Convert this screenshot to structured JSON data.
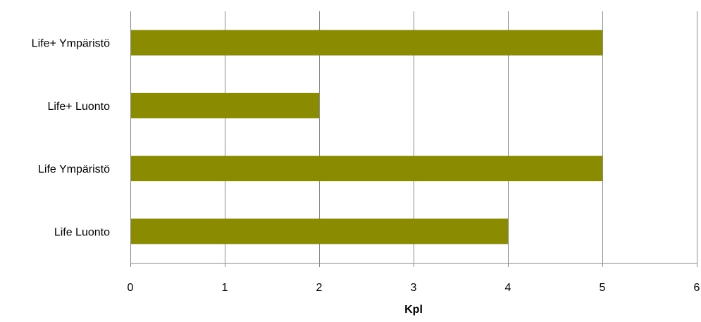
{
  "chart_data": {
    "type": "bar",
    "orientation": "horizontal",
    "categories": [
      "Life+ Ympäristö",
      "Life+ Luonto",
      "Life Ympäristö",
      "Life Luonto"
    ],
    "values": [
      5,
      2,
      5,
      4
    ],
    "xlabel": "Kpl",
    "ylabel": "",
    "title": "",
    "xlim": [
      0,
      6
    ],
    "xticks": [
      "0",
      "1",
      "2",
      "3",
      "4",
      "5",
      "6"
    ],
    "grid": "vertical",
    "legend": "none",
    "bar_color": "#8B8B00"
  }
}
